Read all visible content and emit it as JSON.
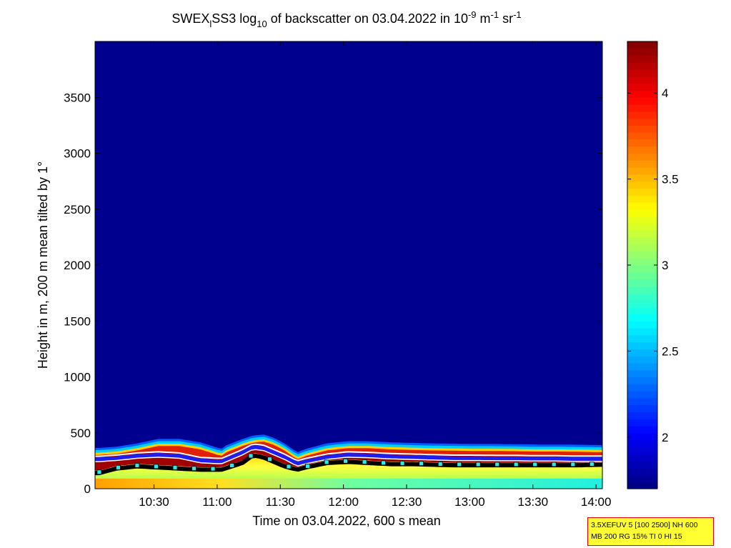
{
  "chart_data": {
    "type": "heatmap",
    "title": {
      "prefix": "SWEX",
      "prefix_sub": "l",
      "name": "SS3 log",
      "log_sub": "10",
      "middle": " of backscatter on 03.04.2022 in 10",
      "exp1": "-9",
      "unit1": " m",
      "exp2": "-1",
      "unit2": " sr",
      "exp3": "-1"
    },
    "xlabel": "Time on 03.04.2022, 600 s mean",
    "ylabel": "Height in m, 200 m mean tilted by 1°",
    "x_ticks": [
      "10:30",
      "11:00",
      "11:30",
      "12:00",
      "12:30",
      "13:00",
      "13:30",
      "14:00"
    ],
    "x_range": [
      "10:02",
      "14:03"
    ],
    "y_ticks": [
      "0",
      "500",
      "1000",
      "1500",
      "2000",
      "2500",
      "3000",
      "3500"
    ],
    "y_range": [
      0,
      4000
    ],
    "colorbar": {
      "range": [
        1.7,
        4.3
      ],
      "ticks": [
        "2",
        "2.5",
        "3",
        "3.5",
        "4"
      ],
      "colormap": "jet"
    },
    "layer_top_m": {
      "times_min": [
        2,
        10,
        20,
        30,
        40,
        50,
        60,
        62,
        70,
        75,
        80,
        85,
        90,
        96,
        100,
        110,
        120,
        130,
        140,
        150,
        160,
        170,
        180,
        190,
        200,
        210,
        220,
        230,
        241
      ],
      "values": [
        340,
        350,
        380,
        420,
        420,
        390,
        330,
        360,
        420,
        450,
        460,
        430,
        380,
        300,
        330,
        380,
        400,
        400,
        390,
        385,
        380,
        378,
        375,
        375,
        373,
        370,
        370,
        368,
        365
      ]
    },
    "aerosol_layer_m": {
      "times_min": [
        2,
        10,
        20,
        30,
        40,
        50,
        60,
        70,
        75,
        80,
        90,
        96,
        100,
        110,
        120,
        130,
        140,
        150,
        160,
        170,
        180,
        190,
        200,
        210,
        220,
        230,
        241
      ],
      "values": [
        260,
        270,
        290,
        300,
        290,
        250,
        240,
        320,
        370,
        360,
        280,
        220,
        240,
        280,
        300,
        295,
        285,
        280,
        275,
        270,
        270,
        268,
        268,
        265,
        265,
        262,
        262
      ]
    },
    "mixing_height_m": {
      "times_min": [
        2,
        10,
        20,
        30,
        40,
        50,
        60,
        70,
        75,
        80,
        90,
        96,
        100,
        110,
        120,
        130,
        140,
        150,
        160,
        170,
        180,
        190,
        200,
        210,
        220,
        230,
        241
      ],
      "values": [
        140,
        180,
        200,
        190,
        180,
        170,
        170,
        230,
        300,
        280,
        200,
        170,
        190,
        230,
        240,
        230,
        220,
        220,
        215,
        210,
        210,
        210,
        210,
        210,
        210,
        210,
        215
      ]
    }
  },
  "info_box": {
    "line1": "3.5XEFUV 5 [100 2500] NH 600",
    "line2": "MB 200 RG 15% TI 0 HI 15"
  },
  "colors": {
    "background_field": "#00008f",
    "layer_line": "#ffffff",
    "aerosol_line": "#1e1ef0",
    "mixing_line": "#000000",
    "marker": "#2ee8e8"
  }
}
